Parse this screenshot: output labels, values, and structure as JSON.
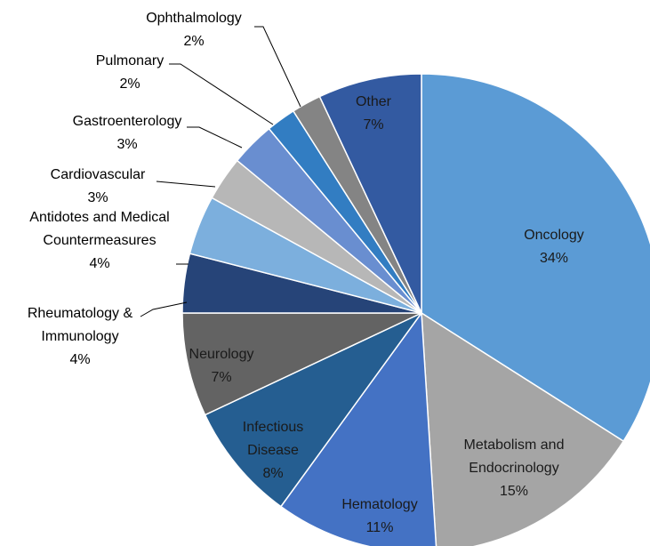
{
  "chart_data": {
    "type": "pie",
    "categories": [
      "Oncology",
      "Metabolism and Endocrinology",
      "Hematology",
      "Infectious Disease",
      "Neurology",
      "Rheumatology & Immunology",
      "Antidotes and Medical Countermeasures",
      "Cardiovascular",
      "Gastroenterology",
      "Pulmonary",
      "Ophthalmology",
      "Other"
    ],
    "values": [
      34,
      15,
      11,
      8,
      7,
      4,
      4,
      3,
      3,
      2,
      2,
      7
    ],
    "value_labels": [
      "34%",
      "15%",
      "11%",
      "8%",
      "7%",
      "4%",
      "4%",
      "3%",
      "3%",
      "2%",
      "2%",
      "7%"
    ],
    "colors": [
      "#5b9bd5",
      "#a5a5a5",
      "#4472c4",
      "#255e91",
      "#636363",
      "#264478",
      "#7cafdd",
      "#b7b7b7",
      "#698ed0",
      "#327dc2",
      "#848484",
      "#335aa1"
    ]
  }
}
